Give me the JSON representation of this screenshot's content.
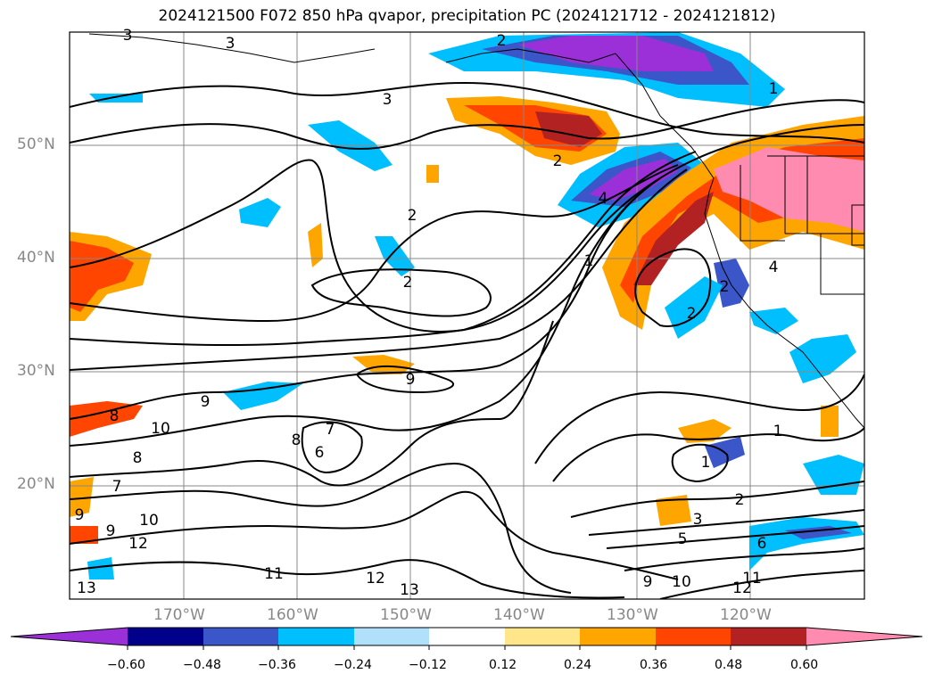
{
  "title": "2024121500 F072 850 hPa qvapor, precipitation PC (2024121712 - 2024121812)",
  "lat_labels": [
    "50°N",
    "40°N",
    "30°N",
    "20°N"
  ],
  "lon_labels": [
    "170°W",
    "160°W",
    "150°W",
    "140°W",
    "130°W",
    "120°W"
  ],
  "colorbar": {
    "ticks": [
      "−0.60",
      "−0.48",
      "−0.36",
      "−0.24",
      "−0.12",
      "0.12",
      "0.24",
      "0.36",
      "0.48",
      "0.60"
    ],
    "colors": [
      "#9b30d9",
      "#00008b",
      "#3a56c8",
      "#00bfff",
      "#b0e0fa",
      "#ffffff",
      "#ffe68a",
      "#ffa500",
      "#ff4500",
      "#b22222",
      "#ff8cb0"
    ]
  },
  "contour_labels": [
    "3",
    "3",
    "3",
    "2",
    "1",
    "2",
    "4",
    "2",
    "2",
    "1",
    "2",
    "4",
    "2",
    "9",
    "9",
    "8",
    "10",
    "7",
    "8",
    "6",
    "8",
    "7",
    "9",
    "9",
    "10",
    "12",
    "11",
    "12",
    "13",
    "13",
    "1",
    "1",
    "2",
    "3",
    "5",
    "6",
    "9",
    "10",
    "12",
    "11"
  ]
}
